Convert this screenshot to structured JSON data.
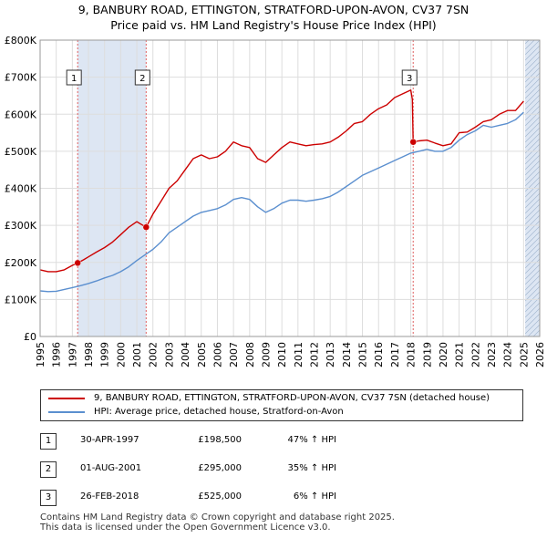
{
  "title_line1": "9, BANBURY ROAD, ETTINGTON, STRATFORD-UPON-AVON, CV37 7SN",
  "title_line2": "Price paid vs. HM Land Registry's House Price Index (HPI)",
  "colors": {
    "property": "#cc0000",
    "hpi": "#5b8fcf",
    "shade": "#dde6f3",
    "grid": "#dddddd",
    "vline": "#e06060"
  },
  "legend": {
    "property_label": "9, BANBURY ROAD, ETTINGTON, STRATFORD-UPON-AVON, CV37 7SN (detached house)",
    "hpi_label": "HPI: Average price, detached house, Stratford-on-Avon"
  },
  "transactions": [
    {
      "num": "1",
      "date": "30-APR-1997",
      "price": "£198,500",
      "hpi_change": "47% ↑ HPI"
    },
    {
      "num": "2",
      "date": "01-AUG-2001",
      "price": "£295,000",
      "hpi_change": "35% ↑ HPI"
    },
    {
      "num": "3",
      "date": "26-FEB-2018",
      "price": "£525,000",
      "hpi_change": "6% ↑ HPI"
    }
  ],
  "footer": {
    "line1": "Contains HM Land Registry data © Crown copyright and database right 2025.",
    "line2": "This data is licensed under the Open Government Licence v3.0."
  },
  "chart_data": {
    "type": "line",
    "x_range": [
      1995,
      2026
    ],
    "ylim": [
      0,
      800000
    ],
    "y_ticks": [
      {
        "value": 0,
        "label": "£0"
      },
      {
        "value": 100000,
        "label": "£100K"
      },
      {
        "value": 200000,
        "label": "£200K"
      },
      {
        "value": 300000,
        "label": "£300K"
      },
      {
        "value": 400000,
        "label": "£400K"
      },
      {
        "value": 500000,
        "label": "£500K"
      },
      {
        "value": 600000,
        "label": "£600K"
      },
      {
        "value": 700000,
        "label": "£700K"
      },
      {
        "value": 800000,
        "label": "£800K"
      }
    ],
    "x_ticks": [
      "1995",
      "1996",
      "1997",
      "1998",
      "1999",
      "2000",
      "2001",
      "2002",
      "2003",
      "2004",
      "2005",
      "2006",
      "2007",
      "2008",
      "2009",
      "2010",
      "2011",
      "2012",
      "2013",
      "2014",
      "2015",
      "2016",
      "2017",
      "2018",
      "2019",
      "2020",
      "2021",
      "2022",
      "2023",
      "2024",
      "2025",
      "2026"
    ],
    "grid": true,
    "shaded_ranges": [
      [
        1997.33,
        2001.58
      ],
      [
        2025.1,
        2026
      ]
    ],
    "hatched_range": [
      2025.1,
      2026
    ],
    "sale_markers": [
      {
        "label": "1",
        "x": 1997.33,
        "y": 198500
      },
      {
        "label": "2",
        "x": 2001.58,
        "y": 295000
      },
      {
        "label": "3",
        "x": 2018.15,
        "y": 525000
      }
    ],
    "series": [
      {
        "name": "9, BANBURY ROAD, ETTINGTON, STRATFORD-UPON-AVON, CV37 7SN (detached house)",
        "color": "#cc0000",
        "x": [
          1995.0,
          1995.5,
          1996.0,
          1996.5,
          1997.0,
          1997.33,
          1997.7,
          1998.0,
          1998.5,
          1999.0,
          1999.5,
          2000.0,
          2000.5,
          2001.0,
          2001.3,
          2001.58,
          2002.0,
          2002.5,
          2003.0,
          2003.5,
          2004.0,
          2004.5,
          2005.0,
          2005.5,
          2006.0,
          2006.5,
          2007.0,
          2007.5,
          2008.0,
          2008.5,
          2009.0,
          2009.5,
          2010.0,
          2010.5,
          2011.0,
          2011.5,
          2012.0,
          2012.5,
          2013.0,
          2013.5,
          2014.0,
          2014.5,
          2015.0,
          2015.5,
          2016.0,
          2016.5,
          2017.0,
          2017.5,
          2018.0,
          2018.1,
          2018.15,
          2018.5,
          2019.0,
          2019.5,
          2020.0,
          2020.5,
          2021.0,
          2021.5,
          2022.0,
          2022.5,
          2023.0,
          2023.5,
          2024.0,
          2024.5,
          2025.0
        ],
        "y": [
          180000,
          175000,
          175000,
          180000,
          192000,
          198500,
          207000,
          215000,
          228000,
          240000,
          255000,
          275000,
          295000,
          310000,
          302000,
          295000,
          330000,
          365000,
          400000,
          420000,
          450000,
          480000,
          490000,
          480000,
          485000,
          500000,
          525000,
          515000,
          510000,
          480000,
          470000,
          490000,
          510000,
          525000,
          520000,
          515000,
          518000,
          520000,
          525000,
          538000,
          555000,
          575000,
          580000,
          600000,
          615000,
          625000,
          645000,
          655000,
          665000,
          640000,
          525000,
          528000,
          530000,
          522000,
          515000,
          520000,
          550000,
          552000,
          565000,
          580000,
          585000,
          600000,
          610000,
          610000,
          635000
        ]
      },
      {
        "name": "HPI: Average price, detached house, Stratford-on-Avon",
        "color": "#5b8fcf",
        "x": [
          1995.0,
          1995.5,
          1996.0,
          1996.5,
          1997.0,
          1997.5,
          1998.0,
          1998.5,
          1999.0,
          1999.5,
          2000.0,
          2000.5,
          2001.0,
          2001.5,
          2002.0,
          2002.5,
          2003.0,
          2003.5,
          2004.0,
          2004.5,
          2005.0,
          2005.5,
          2006.0,
          2006.5,
          2007.0,
          2007.5,
          2008.0,
          2008.5,
          2009.0,
          2009.5,
          2010.0,
          2010.5,
          2011.0,
          2011.5,
          2012.0,
          2012.5,
          2013.0,
          2013.5,
          2014.0,
          2014.5,
          2015.0,
          2015.5,
          2016.0,
          2016.5,
          2017.0,
          2017.5,
          2018.0,
          2018.5,
          2019.0,
          2019.5,
          2020.0,
          2020.5,
          2021.0,
          2021.5,
          2022.0,
          2022.5,
          2023.0,
          2023.5,
          2024.0,
          2024.5,
          2025.0
        ],
        "y": [
          123000,
          121000,
          122000,
          127000,
          132000,
          137000,
          143000,
          150000,
          158000,
          165000,
          175000,
          188000,
          205000,
          220000,
          235000,
          255000,
          280000,
          295000,
          310000,
          325000,
          335000,
          340000,
          345000,
          355000,
          370000,
          375000,
          370000,
          350000,
          335000,
          345000,
          360000,
          368000,
          368000,
          365000,
          368000,
          372000,
          378000,
          390000,
          405000,
          420000,
          435000,
          445000,
          455000,
          465000,
          475000,
          485000,
          495000,
          500000,
          505000,
          500000,
          500000,
          510000,
          530000,
          545000,
          555000,
          570000,
          565000,
          570000,
          575000,
          585000,
          605000
        ]
      }
    ]
  }
}
